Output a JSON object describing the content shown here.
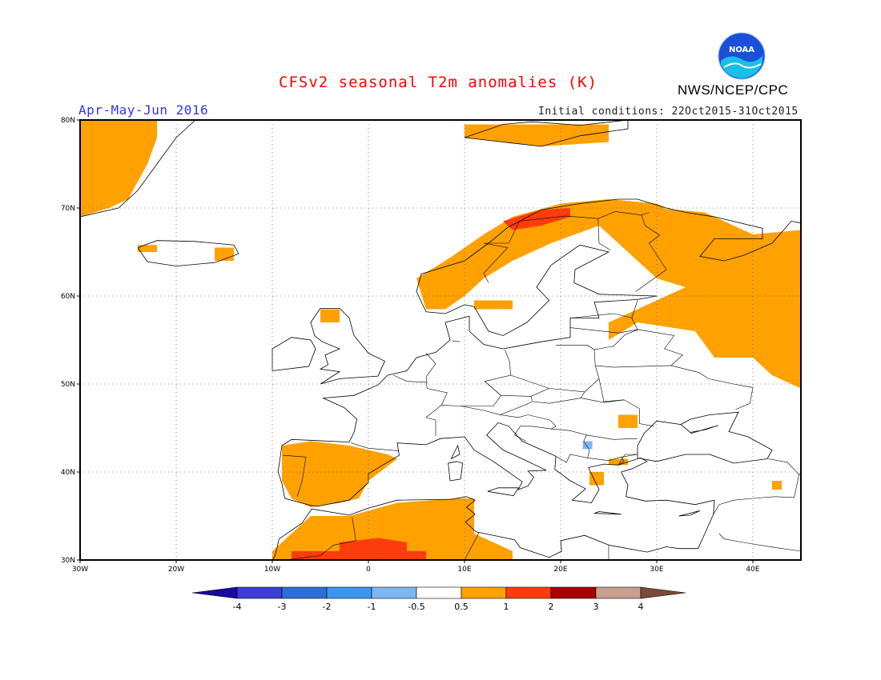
{
  "title": "CFSv2 seasonal T2m anomalies (K)",
  "agency": "NWS/NCEP/CPC",
  "logo_text": "NOAA",
  "season": "Apr-May-Jun 2016",
  "init_conditions": "Initial conditions: 22Oct2015-31Oct2015",
  "colors": {
    "title": "#ff0000",
    "season": "#3333ff"
  },
  "map": {
    "lon_range": [
      -30,
      45
    ],
    "lat_range": [
      30,
      80
    ],
    "lon_ticks": [
      {
        "value": -30,
        "label": "30W"
      },
      {
        "value": -20,
        "label": "20W"
      },
      {
        "value": -10,
        "label": "10W"
      },
      {
        "value": 0,
        "label": "0"
      },
      {
        "value": 10,
        "label": "10E"
      },
      {
        "value": 20,
        "label": "20E"
      },
      {
        "value": 30,
        "label": "30E"
      },
      {
        "value": 40,
        "label": "40E"
      }
    ],
    "lat_ticks": [
      {
        "value": 80,
        "label": "80N"
      },
      {
        "value": 70,
        "label": "70N"
      },
      {
        "value": 60,
        "label": "60N"
      },
      {
        "value": 50,
        "label": "50N"
      },
      {
        "value": 40,
        "label": "40N"
      },
      {
        "value": 30,
        "label": "30N"
      }
    ],
    "gridlines": "dotted",
    "anomaly_regions": [
      {
        "name": "greenland",
        "category": "0.5-1",
        "polygon": [
          [
            -30,
            80
          ],
          [
            -22,
            80
          ],
          [
            -22,
            78
          ],
          [
            -23,
            75
          ],
          [
            -25,
            71
          ],
          [
            -27,
            70
          ],
          [
            -30,
            69
          ]
        ]
      },
      {
        "name": "iceland-east",
        "category": "0.5-1",
        "polygon": [
          [
            -16,
            65.5
          ],
          [
            -14,
            65.5
          ],
          [
            -14,
            64
          ],
          [
            -16,
            64
          ]
        ]
      },
      {
        "name": "iceland-west",
        "category": "0.5-1",
        "polygon": [
          [
            -24,
            65.8
          ],
          [
            -22,
            65.8
          ],
          [
            -22,
            65
          ],
          [
            -24,
            65
          ]
        ]
      },
      {
        "name": "svalbard",
        "category": "0.5-1",
        "polygon": [
          [
            10,
            79.5
          ],
          [
            25,
            79.5
          ],
          [
            25,
            77.5
          ],
          [
            18,
            77
          ],
          [
            10,
            78
          ]
        ]
      },
      {
        "name": "scotland-north",
        "category": "0.5-1",
        "polygon": [
          [
            -5,
            58.5
          ],
          [
            -3,
            58.5
          ],
          [
            -3,
            57
          ],
          [
            -5,
            57
          ]
        ]
      },
      {
        "name": "norway",
        "category": "0.5-1",
        "polygon": [
          [
            5,
            62
          ],
          [
            8,
            64
          ],
          [
            12,
            67
          ],
          [
            15,
            69
          ],
          [
            20,
            70.5
          ],
          [
            25,
            71
          ],
          [
            30,
            70.5
          ],
          [
            31,
            70
          ],
          [
            24,
            68
          ],
          [
            19,
            66
          ],
          [
            15,
            64
          ],
          [
            12,
            62
          ],
          [
            10,
            60
          ],
          [
            8,
            58.5
          ],
          [
            6,
            58.5
          ]
        ]
      },
      {
        "name": "sweden-south",
        "category": "0.5-1",
        "polygon": [
          [
            11,
            59.5
          ],
          [
            15,
            59.5
          ],
          [
            15,
            58.5
          ],
          [
            11,
            58.5
          ]
        ]
      },
      {
        "name": "finland-russia-north",
        "category": "0.5-1",
        "polygon": [
          [
            24,
            68
          ],
          [
            30,
            70
          ],
          [
            35,
            69.5
          ],
          [
            38,
            68
          ],
          [
            40,
            67
          ],
          [
            41,
            63
          ],
          [
            38,
            62
          ],
          [
            33,
            61
          ],
          [
            30,
            62
          ],
          [
            28,
            64
          ],
          [
            26,
            66
          ]
        ]
      },
      {
        "name": "russia-west",
        "category": "0.5-1",
        "polygon": [
          [
            33,
            63
          ],
          [
            40,
            67
          ],
          [
            45,
            67.5
          ],
          [
            45,
            49.5
          ],
          [
            42,
            51
          ],
          [
            40,
            53
          ],
          [
            36,
            53
          ],
          [
            34,
            56
          ],
          [
            28,
            57
          ],
          [
            25,
            55
          ],
          [
            25,
            57
          ],
          [
            29,
            59
          ],
          [
            33,
            61
          ]
        ]
      },
      {
        "name": "romania-patch",
        "category": "0.5-1",
        "polygon": [
          [
            26,
            46.5
          ],
          [
            28,
            46.5
          ],
          [
            28,
            45
          ],
          [
            26,
            45
          ]
        ]
      },
      {
        "name": "greece-patch",
        "category": "0.5-1",
        "polygon": [
          [
            23,
            40
          ],
          [
            24.5,
            40
          ],
          [
            24.5,
            38.5
          ],
          [
            23,
            38.5
          ]
        ]
      },
      {
        "name": "turkey-patch",
        "category": "0.5-1",
        "polygon": [
          [
            25,
            41.5
          ],
          [
            27,
            41.5
          ],
          [
            27,
            40.8
          ],
          [
            25,
            40.8
          ]
        ]
      },
      {
        "name": "east-patch",
        "category": "0.5-1",
        "polygon": [
          [
            42,
            39
          ],
          [
            43,
            39
          ],
          [
            43,
            38
          ],
          [
            42,
            38
          ]
        ]
      },
      {
        "name": "iberia",
        "category": "0.5-1",
        "polygon": [
          [
            -9,
            43
          ],
          [
            -6,
            43.5
          ],
          [
            -2,
            43
          ],
          [
            2,
            42
          ],
          [
            3,
            41.5
          ],
          [
            0,
            39
          ],
          [
            -1,
            37
          ],
          [
            -3,
            36.5
          ],
          [
            -6,
            36
          ],
          [
            -8,
            37
          ],
          [
            -9,
            39
          ]
        ]
      },
      {
        "name": "north-africa",
        "category": "0.5-1",
        "polygon": [
          [
            -10,
            30
          ],
          [
            -10,
            31
          ],
          [
            -6,
            35
          ],
          [
            -2,
            35
          ],
          [
            3,
            36.5
          ],
          [
            9,
            37
          ],
          [
            11,
            37
          ],
          [
            11,
            33
          ],
          [
            15,
            31
          ],
          [
            15,
            30
          ]
        ]
      }
    ],
    "anomaly_regions_strong": [
      {
        "name": "norway-north",
        "category": "1-2",
        "polygon": [
          [
            14,
            68.5
          ],
          [
            18,
            69.8
          ],
          [
            21,
            70
          ],
          [
            21,
            69
          ],
          [
            18,
            68
          ],
          [
            15,
            67.5
          ]
        ]
      },
      {
        "name": "sahara-north",
        "category": "1-2",
        "polygon": [
          [
            -8,
            30
          ],
          [
            -8,
            31
          ],
          [
            -3,
            31
          ],
          [
            -3,
            32
          ],
          [
            1,
            32.5
          ],
          [
            4,
            32
          ],
          [
            4,
            31
          ],
          [
            6,
            31
          ],
          [
            6,
            30
          ]
        ]
      }
    ],
    "weak_negative": [
      {
        "name": "bulgaria-patch",
        "category": "-1--0.5",
        "polygon": [
          [
            22.3,
            43.5
          ],
          [
            23.3,
            43.5
          ],
          [
            23.3,
            42.6
          ],
          [
            22.3,
            42.6
          ]
        ]
      }
    ]
  },
  "legend": {
    "boundaries": [
      "-4",
      "-3",
      "-2",
      "-1",
      "-0.5",
      "0.5",
      "1",
      "2",
      "3",
      "4"
    ],
    "colors": [
      "#1a0aa0",
      "#3d3dd4",
      "#2d6fd8",
      "#3d96ee",
      "#7cb7f2",
      "#ffffff",
      "#ffa100",
      "#ff3c0c",
      "#a80000",
      "#c8a090",
      "#7a4a3a"
    ],
    "category_colors": {
      "0.5-1": "#ffa100",
      "1-2": "#ff3c0c",
      "-1--0.5": "#7cb7f2"
    }
  }
}
